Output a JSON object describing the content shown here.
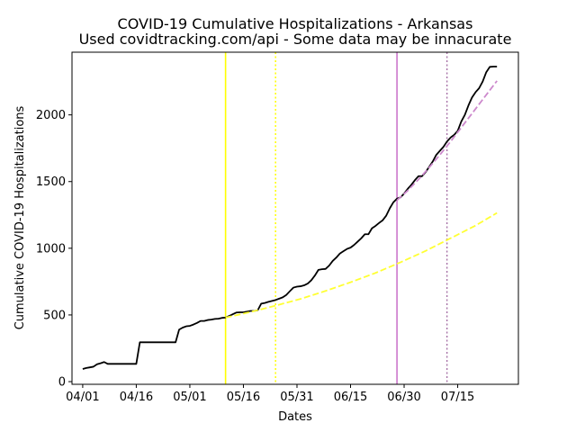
{
  "chart_data": {
    "type": "line",
    "title": "COVID-19 Cumulative Hospitalizations - Arkansas",
    "subtitle": "Used covidtracking.com/api - Some data may be innacurate",
    "xlabel": "Dates",
    "ylabel": "Cumulative COVID-19 Hospitalizations",
    "x_start_date": "2020-03-29",
    "xlim": [
      "2020-03-29",
      "2020-08-01"
    ],
    "ylim": [
      -20,
      2470
    ],
    "x_ticks": [
      {
        "date": "2020-04-01",
        "label": "04/01"
      },
      {
        "date": "2020-04-16",
        "label": "04/16"
      },
      {
        "date": "2020-05-01",
        "label": "05/01"
      },
      {
        "date": "2020-05-16",
        "label": "05/16"
      },
      {
        "date": "2020-05-31",
        "label": "05/31"
      },
      {
        "date": "2020-06-15",
        "label": "06/15"
      },
      {
        "date": "2020-06-30",
        "label": "06/30"
      },
      {
        "date": "2020-07-15",
        "label": "07/15"
      }
    ],
    "y_ticks": [
      0,
      500,
      1000,
      1500,
      2000
    ],
    "grid": false,
    "legend": "none",
    "vertical_lines": [
      {
        "date": "2020-05-11",
        "color": "#ffff00",
        "style": "solid"
      },
      {
        "date": "2020-05-25",
        "color": "#ffff00",
        "style": "dotted"
      },
      {
        "date": "2020-06-28",
        "color": "#cc77cc",
        "style": "solid"
      },
      {
        "date": "2020-07-12",
        "color": "#aa77aa",
        "style": "dotted"
      }
    ],
    "series": [
      {
        "color": "#000000",
        "style": "solid",
        "points": [
          [
            "2020-04-01",
            95
          ],
          [
            "2020-04-02",
            102
          ],
          [
            "2020-04-03",
            107
          ],
          [
            "2020-04-04",
            112
          ],
          [
            "2020-04-05",
            130
          ],
          [
            "2020-04-06",
            138
          ],
          [
            "2020-04-07",
            147
          ],
          [
            "2020-04-08",
            133
          ],
          [
            "2020-04-09",
            133
          ],
          [
            "2020-04-10",
            133
          ],
          [
            "2020-04-11",
            133
          ],
          [
            "2020-04-12",
            133
          ],
          [
            "2020-04-13",
            133
          ],
          [
            "2020-04-14",
            133
          ],
          [
            "2020-04-15",
            133
          ],
          [
            "2020-04-16",
            133
          ],
          [
            "2020-04-17",
            295
          ],
          [
            "2020-04-18",
            295
          ],
          [
            "2020-04-19",
            295
          ],
          [
            "2020-04-20",
            295
          ],
          [
            "2020-04-21",
            295
          ],
          [
            "2020-04-22",
            295
          ],
          [
            "2020-04-23",
            295
          ],
          [
            "2020-04-24",
            295
          ],
          [
            "2020-04-25",
            295
          ],
          [
            "2020-04-26",
            295
          ],
          [
            "2020-04-27",
            295
          ],
          [
            "2020-04-28",
            390
          ],
          [
            "2020-04-29",
            405
          ],
          [
            "2020-04-30",
            415
          ],
          [
            "2020-05-01",
            418
          ],
          [
            "2020-05-02",
            428
          ],
          [
            "2020-05-03",
            440
          ],
          [
            "2020-05-04",
            455
          ],
          [
            "2020-05-05",
            455
          ],
          [
            "2020-05-06",
            462
          ],
          [
            "2020-05-07",
            465
          ],
          [
            "2020-05-08",
            470
          ],
          [
            "2020-05-09",
            472
          ],
          [
            "2020-05-10",
            478
          ],
          [
            "2020-05-11",
            480
          ],
          [
            "2020-05-12",
            492
          ],
          [
            "2020-05-13",
            505
          ],
          [
            "2020-05-14",
            518
          ],
          [
            "2020-05-15",
            520
          ],
          [
            "2020-05-16",
            520
          ],
          [
            "2020-05-17",
            525
          ],
          [
            "2020-05-18",
            530
          ],
          [
            "2020-05-19",
            530
          ],
          [
            "2020-05-20",
            535
          ],
          [
            "2020-05-21",
            585
          ],
          [
            "2020-05-22",
            590
          ],
          [
            "2020-05-23",
            598
          ],
          [
            "2020-05-24",
            605
          ],
          [
            "2020-05-25",
            612
          ],
          [
            "2020-05-26",
            622
          ],
          [
            "2020-05-27",
            632
          ],
          [
            "2020-05-28",
            650
          ],
          [
            "2020-05-29",
            678
          ],
          [
            "2020-05-30",
            705
          ],
          [
            "2020-05-31",
            712
          ],
          [
            "2020-06-01",
            715
          ],
          [
            "2020-06-02",
            722
          ],
          [
            "2020-06-03",
            735
          ],
          [
            "2020-06-04",
            760
          ],
          [
            "2020-06-05",
            795
          ],
          [
            "2020-06-06",
            838
          ],
          [
            "2020-06-07",
            843
          ],
          [
            "2020-06-08",
            845
          ],
          [
            "2020-06-09",
            870
          ],
          [
            "2020-06-10",
            905
          ],
          [
            "2020-06-11",
            930
          ],
          [
            "2020-06-12",
            960
          ],
          [
            "2020-06-13",
            978
          ],
          [
            "2020-06-14",
            995
          ],
          [
            "2020-06-15",
            1005
          ],
          [
            "2020-06-16",
            1025
          ],
          [
            "2020-06-17",
            1050
          ],
          [
            "2020-06-18",
            1075
          ],
          [
            "2020-06-19",
            1105
          ],
          [
            "2020-06-20",
            1105
          ],
          [
            "2020-06-21",
            1150
          ],
          [
            "2020-06-22",
            1168
          ],
          [
            "2020-06-23",
            1190
          ],
          [
            "2020-06-24",
            1210
          ],
          [
            "2020-06-25",
            1245
          ],
          [
            "2020-06-26",
            1300
          ],
          [
            "2020-06-27",
            1345
          ],
          [
            "2020-06-28",
            1372
          ],
          [
            "2020-06-29",
            1382
          ],
          [
            "2020-06-30",
            1410
          ],
          [
            "2020-07-01",
            1445
          ],
          [
            "2020-07-02",
            1475
          ],
          [
            "2020-07-03",
            1510
          ],
          [
            "2020-07-04",
            1540
          ],
          [
            "2020-07-05",
            1540
          ],
          [
            "2020-07-06",
            1570
          ],
          [
            "2020-07-07",
            1610
          ],
          [
            "2020-07-08",
            1650
          ],
          [
            "2020-07-09",
            1700
          ],
          [
            "2020-07-10",
            1730
          ],
          [
            "2020-07-11",
            1760
          ],
          [
            "2020-07-12",
            1800
          ],
          [
            "2020-07-13",
            1830
          ],
          [
            "2020-07-14",
            1850
          ],
          [
            "2020-07-15",
            1880
          ],
          [
            "2020-07-16",
            1950
          ],
          [
            "2020-07-17",
            2000
          ],
          [
            "2020-07-18",
            2070
          ],
          [
            "2020-07-19",
            2130
          ],
          [
            "2020-07-20",
            2170
          ],
          [
            "2020-07-21",
            2200
          ],
          [
            "2020-07-22",
            2250
          ],
          [
            "2020-07-23",
            2320
          ],
          [
            "2020-07-24",
            2360
          ],
          [
            "2020-07-25",
            2362
          ],
          [
            "2020-07-26",
            2362
          ]
        ]
      },
      {
        "color": "#ffff33",
        "style": "dashed",
        "points": [
          [
            "2020-05-11",
            480
          ],
          [
            "2020-05-18",
            522
          ],
          [
            "2020-05-25",
            570
          ],
          [
            "2020-06-01",
            620
          ],
          [
            "2020-06-08",
            680
          ],
          [
            "2020-06-15",
            745
          ],
          [
            "2020-06-22",
            815
          ],
          [
            "2020-06-29",
            895
          ],
          [
            "2020-07-06",
            980
          ],
          [
            "2020-07-13",
            1075
          ],
          [
            "2020-07-20",
            1170
          ],
          [
            "2020-07-26",
            1265
          ]
        ]
      },
      {
        "color": "#cc88cc",
        "style": "dashed",
        "points": [
          [
            "2020-06-28",
            1360
          ],
          [
            "2020-07-01",
            1432
          ],
          [
            "2020-07-04",
            1515
          ],
          [
            "2020-07-07",
            1605
          ],
          [
            "2020-07-10",
            1700
          ],
          [
            "2020-07-13",
            1800
          ],
          [
            "2020-07-16",
            1905
          ],
          [
            "2020-07-19",
            2010
          ],
          [
            "2020-07-22",
            2115
          ],
          [
            "2020-07-26",
            2255
          ]
        ]
      }
    ]
  }
}
